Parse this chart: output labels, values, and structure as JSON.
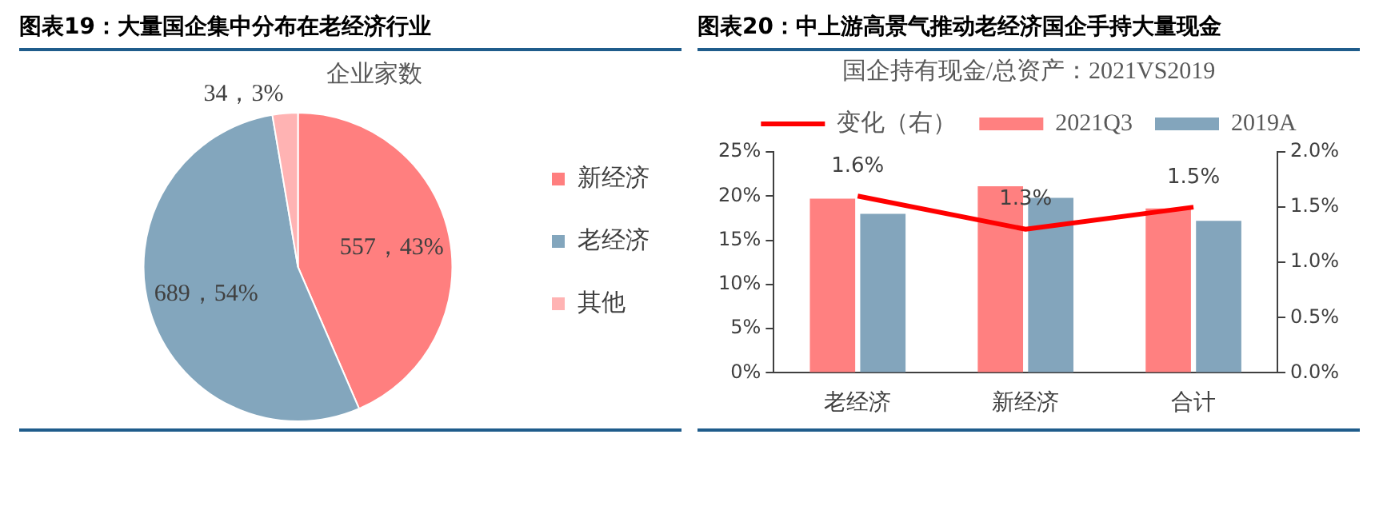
{
  "chart_data": [
    {
      "type": "pie",
      "title": "图表19：大量国企集中分布在老经济行业",
      "subtitle": "企业家数",
      "categories": [
        "新经济",
        "老经济",
        "其他"
      ],
      "values": [
        557,
        689,
        34
      ],
      "colors": [
        "#ff7f7f",
        "#83a6bd",
        "#ffb3b3"
      ],
      "value_labels": [
        "557，43%",
        "689，54%",
        "34，3%"
      ],
      "legend": "right"
    },
    {
      "type": "bar",
      "title": "图表20：中上游高景气推动老经济国企手持大量现金",
      "subtitle": "国企持有现金/总资产：2021VS2019",
      "categories": [
        "老经济",
        "新经济",
        "合计"
      ],
      "series": [
        {
          "name": "2021Q3",
          "color": "#ff8080",
          "values": [
            19.7,
            21.1,
            18.6
          ]
        },
        {
          "name": "2019A",
          "color": "#83a5bc",
          "values": [
            18.0,
            19.8,
            17.2
          ]
        },
        {
          "name": "变化（右）",
          "type": "line",
          "axis": "y2",
          "color": "#ff0000",
          "values": [
            1.6,
            1.3,
            1.5
          ],
          "value_labels": [
            "1.6%",
            "1.3%",
            "1.5%"
          ]
        }
      ],
      "ylim": [
        0,
        25
      ],
      "yticks": [
        {
          "value": 0,
          "label": "0%"
        },
        {
          "value": 5,
          "label": "5%"
        },
        {
          "value": 10,
          "label": "10%"
        },
        {
          "value": 15,
          "label": "15%"
        },
        {
          "value": 20,
          "label": "20%"
        },
        {
          "value": 25,
          "label": "25%"
        }
      ],
      "y2lim": [
        0,
        2
      ],
      "y2ticks": [
        {
          "value": 0,
          "label": "0.0%"
        },
        {
          "value": 0.5,
          "label": "0.5%"
        },
        {
          "value": 1,
          "label": "1.0%"
        },
        {
          "value": 1.5,
          "label": "1.5%"
        },
        {
          "value": 2,
          "label": "2.0%"
        }
      ],
      "legend": "top",
      "grid": false,
      "marker": "none",
      "line_style": "solid"
    }
  ]
}
